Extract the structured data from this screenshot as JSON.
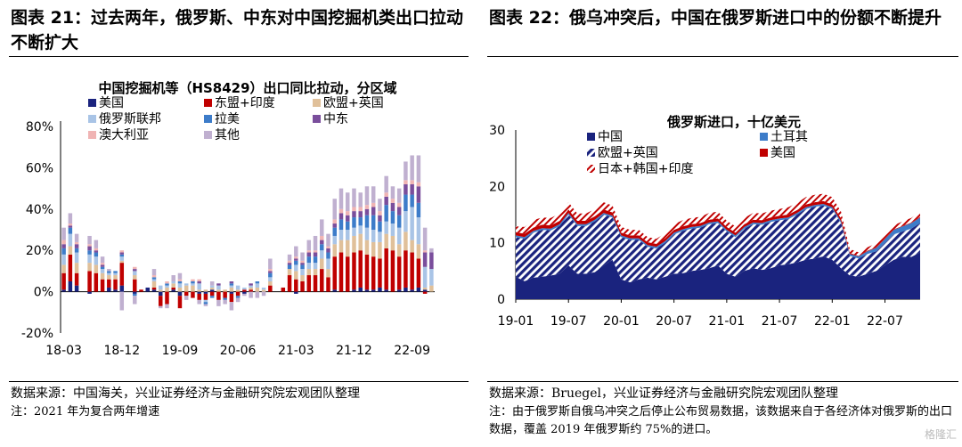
{
  "left": {
    "figure_title": "图表 21：过去两年，俄罗斯、中东对中国挖掘机类出口拉动不断扩大",
    "source": "数据来源：中国海关，兴业证券经济与金融研究院宏观团队整理",
    "note": "注：2021 年为复合两年增速"
  },
  "right": {
    "figure_title": "图表 22：俄乌冲突后，中国在俄罗斯进口中的份额不断提升",
    "source": "数据来源：Bruegel，兴业证券经济与金融研究院宏观团队整理",
    "note": "注：由于俄罗斯自俄乌冲突之后停止公布贸易数据，该数据来自于各经济体对俄罗斯的出口数据，覆盖 2019 年俄罗斯约 75%的进口。"
  },
  "watermark": "格隆汇",
  "chart_data": [
    {
      "type": "bar",
      "stacked": true,
      "title": "中国挖掘机等（HS8429）出口同比拉动，分区域",
      "yticks": [
        "80%",
        "60%",
        "40%",
        "20%",
        "0%",
        "-20%"
      ],
      "ylim": [
        -20,
        80
      ],
      "xticks": [
        "18-03",
        "18-12",
        "19-09",
        "20-06",
        "21-03",
        "21-12",
        "22-09"
      ],
      "legend_position": "top-left",
      "categories": [
        "18-03",
        "18-04",
        "18-05",
        "18-06",
        "18-07",
        "18-08",
        "18-09",
        "18-10",
        "18-11",
        "18-12",
        "19-01",
        "19-02",
        "19-03",
        "19-04",
        "19-05",
        "19-06",
        "19-07",
        "19-08",
        "19-09",
        "19-10",
        "19-11",
        "19-12",
        "20-01",
        "20-02",
        "20-03",
        "20-04",
        "20-05",
        "20-06",
        "20-07",
        "20-08",
        "20-09",
        "20-10",
        "20-11",
        "20-12",
        "21-01",
        "21-02",
        "21-03",
        "21-04",
        "21-05",
        "21-06",
        "21-07",
        "21-08",
        "21-09",
        "21-10",
        "21-11",
        "21-12",
        "22-01",
        "22-02",
        "22-03",
        "22-04",
        "22-05",
        "22-06",
        "22-07",
        "22-08",
        "22-09",
        "22-10",
        "22-11",
        "22-12"
      ],
      "series": [
        {
          "name": "美国",
          "color": "#1a237e",
          "values": [
            1,
            5,
            3,
            0,
            -1,
            0,
            0,
            2,
            1,
            3,
            0,
            -1,
            0,
            2,
            1,
            -2,
            0,
            1,
            -2,
            0,
            0,
            -1,
            -1,
            1,
            0,
            0,
            -1,
            0,
            -1,
            0,
            0,
            0,
            0,
            0,
            0,
            0,
            -1,
            0,
            0,
            0,
            0,
            0,
            1,
            0,
            0,
            1,
            2,
            1,
            1,
            2,
            1,
            0,
            1,
            2,
            1,
            2,
            1,
            0
          ]
        },
        {
          "name": "东盟+印度",
          "color": "#c00000",
          "values": [
            8,
            13,
            6,
            0,
            10,
            9,
            6,
            4,
            5,
            11,
            0,
            6,
            1,
            0,
            1,
            -5,
            -6,
            1,
            -6,
            -2,
            -3,
            -3,
            -3,
            -2,
            -4,
            -3,
            -4,
            -2,
            1,
            1,
            0,
            0,
            3,
            0,
            2,
            8,
            6,
            5,
            8,
            8,
            11,
            7,
            16,
            19,
            17,
            18,
            18,
            17,
            16,
            14,
            20,
            20,
            16,
            18,
            18,
            14,
            -1,
            0
          ]
        },
        {
          "name": "欧盟+英国",
          "color": "#e0c09a",
          "values": [
            4,
            4,
            5,
            0,
            4,
            4,
            3,
            2,
            2,
            1,
            0,
            2,
            0,
            0,
            3,
            1,
            2,
            2,
            2,
            3,
            3,
            1,
            1,
            1,
            1,
            1,
            2,
            1,
            0,
            1,
            2,
            1,
            2,
            0,
            0,
            3,
            4,
            3,
            3,
            3,
            5,
            4,
            6,
            6,
            8,
            8,
            8,
            7,
            7,
            8,
            7,
            7,
            6,
            9,
            6,
            7,
            1,
            3
          ]
        },
        {
          "name": "俄罗斯联邦",
          "color": "#a9c4e6",
          "values": [
            5,
            6,
            5,
            0,
            4,
            4,
            2,
            1,
            1,
            2,
            0,
            2,
            0,
            0,
            1,
            2,
            1,
            1,
            2,
            1,
            1,
            3,
            -1,
            1,
            2,
            0,
            1,
            2,
            1,
            1,
            2,
            1,
            2,
            0,
            0,
            0,
            3,
            3,
            3,
            3,
            4,
            5,
            4,
            5,
            5,
            4,
            4,
            6,
            6,
            5,
            6,
            6,
            8,
            10,
            16,
            13,
            10,
            8
          ]
        },
        {
          "name": "拉美",
          "color": "#3d7cc9",
          "values": [
            3,
            3,
            2,
            0,
            2,
            2,
            1,
            1,
            1,
            1,
            0,
            -1,
            0,
            0,
            1,
            0,
            1,
            0,
            1,
            0,
            1,
            0,
            -1,
            -1,
            0,
            -1,
            1,
            -1,
            0,
            0,
            1,
            0,
            2,
            0,
            0,
            2,
            2,
            2,
            3,
            3,
            3,
            3,
            4,
            5,
            4,
            5,
            4,
            6,
            7,
            5,
            8,
            6,
            6,
            8,
            6,
            7,
            0,
            0
          ]
        },
        {
          "name": "中东",
          "color": "#7a4e9c",
          "values": [
            2,
            1,
            2,
            0,
            2,
            1,
            1,
            0,
            0,
            1,
            0,
            1,
            0,
            0,
            0,
            0,
            0,
            0,
            0,
            0,
            0,
            1,
            0,
            0,
            1,
            0,
            1,
            0,
            0,
            1,
            0,
            0,
            1,
            0,
            0,
            1,
            1,
            1,
            2,
            2,
            2,
            2,
            2,
            3,
            3,
            3,
            3,
            3,
            4,
            3,
            4,
            4,
            4,
            5,
            5,
            8,
            7,
            8
          ]
        },
        {
          "name": "澳大利亚",
          "color": "#f0b4b4",
          "values": [
            2,
            1,
            1,
            0,
            1,
            1,
            1,
            0,
            0,
            1,
            0,
            1,
            0,
            0,
            1,
            0,
            1,
            0,
            1,
            0,
            1,
            1,
            0,
            0,
            0,
            0,
            0,
            0,
            0,
            0,
            0,
            0,
            1,
            0,
            0,
            1,
            1,
            1,
            1,
            1,
            2,
            1,
            2,
            2,
            2,
            2,
            2,
            2,
            2,
            2,
            2,
            2,
            2,
            2,
            2,
            2,
            1,
            0
          ]
        },
        {
          "name": "其他",
          "color": "#c0b0d0",
          "values": [
            6,
            5,
            4,
            0,
            4,
            4,
            3,
            1,
            0,
            -9,
            0,
            -4,
            0,
            0,
            3,
            -1,
            -2,
            3,
            3,
            -2,
            0,
            -2,
            -1,
            2,
            -3,
            -2,
            -4,
            -2,
            -1,
            -3,
            -3,
            -2,
            5,
            0,
            0,
            3,
            5,
            4,
            5,
            7,
            8,
            6,
            10,
            10,
            9,
            9,
            7,
            9,
            8,
            6,
            8,
            6,
            7,
            9,
            12,
            13,
            11,
            2
          ]
        }
      ]
    },
    {
      "type": "area",
      "stacked": true,
      "title": "俄罗斯进口，十亿美元",
      "ylim": [
        0,
        30
      ],
      "yticks": [
        "30",
        "20",
        "10",
        "0"
      ],
      "xticks": [
        "19-01",
        "19-07",
        "20-01",
        "20-07",
        "21-01",
        "21-07",
        "22-01",
        "22-07"
      ],
      "legend_position": "top",
      "x": [
        "19-01",
        "19-02",
        "19-03",
        "19-04",
        "19-05",
        "19-06",
        "19-07",
        "19-08",
        "19-09",
        "19-10",
        "19-11",
        "19-12",
        "20-01",
        "20-02",
        "20-03",
        "20-04",
        "20-05",
        "20-06",
        "20-07",
        "20-08",
        "20-09",
        "20-10",
        "20-11",
        "20-12",
        "21-01",
        "21-02",
        "21-03",
        "21-04",
        "21-05",
        "21-06",
        "21-07",
        "21-08",
        "21-09",
        "21-10",
        "21-11",
        "21-12",
        "22-01",
        "22-02",
        "22-03",
        "22-04",
        "22-05",
        "22-06",
        "22-07",
        "22-08",
        "22-09",
        "22-10",
        "22-11"
      ],
      "series": [
        {
          "name": "中国",
          "color": "#1a237e",
          "values": [
            4.0,
            3.2,
            3.8,
            4.0,
            4.2,
            4.5,
            6.0,
            4.5,
            4.5,
            4.8,
            6.0,
            7.0,
            3.5,
            3.0,
            3.5,
            3.8,
            3.5,
            4.0,
            4.5,
            4.6,
            5.0,
            5.2,
            5.5,
            6.0,
            4.5,
            4.0,
            5.0,
            5.5,
            5.2,
            5.5,
            6.0,
            6.2,
            6.5,
            7.0,
            7.2,
            7.6,
            7.0,
            5.5,
            4.2,
            4.0,
            4.5,
            5.0,
            6.0,
            7.0,
            7.5,
            7.5,
            8.3
          ]
        },
        {
          "name": "欧盟+英国",
          "color": "#1a237e",
          "values": [
            7.0,
            7.5,
            8.0,
            8.3,
            8.0,
            8.5,
            9.0,
            8.5,
            8.5,
            9.0,
            9.0,
            7.5,
            7.5,
            7.5,
            7.0,
            5.5,
            5.5,
            6.0,
            7.0,
            7.5,
            7.5,
            7.5,
            7.8,
            7.5,
            7.5,
            7.0,
            7.5,
            7.8,
            8.0,
            8.2,
            8.0,
            8.0,
            8.5,
            9.0,
            9.2,
            9.0,
            9.0,
            8.0,
            3.5,
            3.2,
            3.5,
            3.5,
            4.0,
            4.5,
            4.5,
            5.0,
            5.2
          ]
        },
        {
          "name": "土耳其",
          "color": "#3d7cc9",
          "values": [
            0.3,
            0.3,
            0.3,
            0.3,
            0.3,
            0.3,
            0.3,
            0.3,
            0.3,
            0.3,
            0.3,
            0.3,
            0.3,
            0.3,
            0.3,
            0.3,
            0.3,
            0.3,
            0.3,
            0.3,
            0.3,
            0.3,
            0.3,
            0.3,
            0.3,
            0.3,
            0.3,
            0.3,
            0.3,
            0.3,
            0.3,
            0.3,
            0.3,
            0.3,
            0.3,
            0.3,
            0.3,
            0.3,
            0.3,
            0.4,
            0.5,
            0.6,
            0.7,
            0.8,
            0.9,
            1.0,
            1.0
          ]
        },
        {
          "name": "美国",
          "color": "#c00000",
          "values": [
            0.6,
            0.6,
            0.6,
            0.6,
            0.6,
            0.6,
            0.6,
            0.6,
            0.6,
            0.6,
            0.6,
            0.6,
            0.5,
            0.5,
            0.5,
            0.5,
            0.5,
            0.5,
            0.5,
            0.5,
            0.5,
            0.5,
            0.5,
            0.5,
            0.5,
            0.5,
            0.5,
            0.5,
            0.5,
            0.5,
            0.5,
            0.5,
            0.5,
            0.5,
            0.5,
            0.5,
            0.5,
            0.5,
            0.2,
            0.1,
            0.1,
            0.1,
            0.1,
            0.1,
            0.1,
            0.1,
            0.1
          ]
        },
        {
          "name": "日本+韩国+印度",
          "color": "#c00000",
          "values": [
            1.0,
            1.2,
            1.3,
            1.3,
            1.3,
            1.3,
            1.3,
            1.3,
            1.3,
            1.3,
            1.3,
            1.2,
            1.0,
            1.0,
            1.0,
            0.9,
            0.9,
            0.9,
            1.0,
            1.1,
            1.1,
            1.1,
            1.2,
            1.2,
            1.1,
            1.1,
            1.1,
            1.2,
            1.2,
            1.2,
            1.2,
            1.3,
            1.3,
            1.3,
            1.3,
            1.3,
            1.3,
            1.2,
            0.7,
            0.6,
            0.6,
            0.7,
            0.7,
            0.7,
            0.8,
            0.8,
            0.9
          ]
        }
      ]
    }
  ]
}
